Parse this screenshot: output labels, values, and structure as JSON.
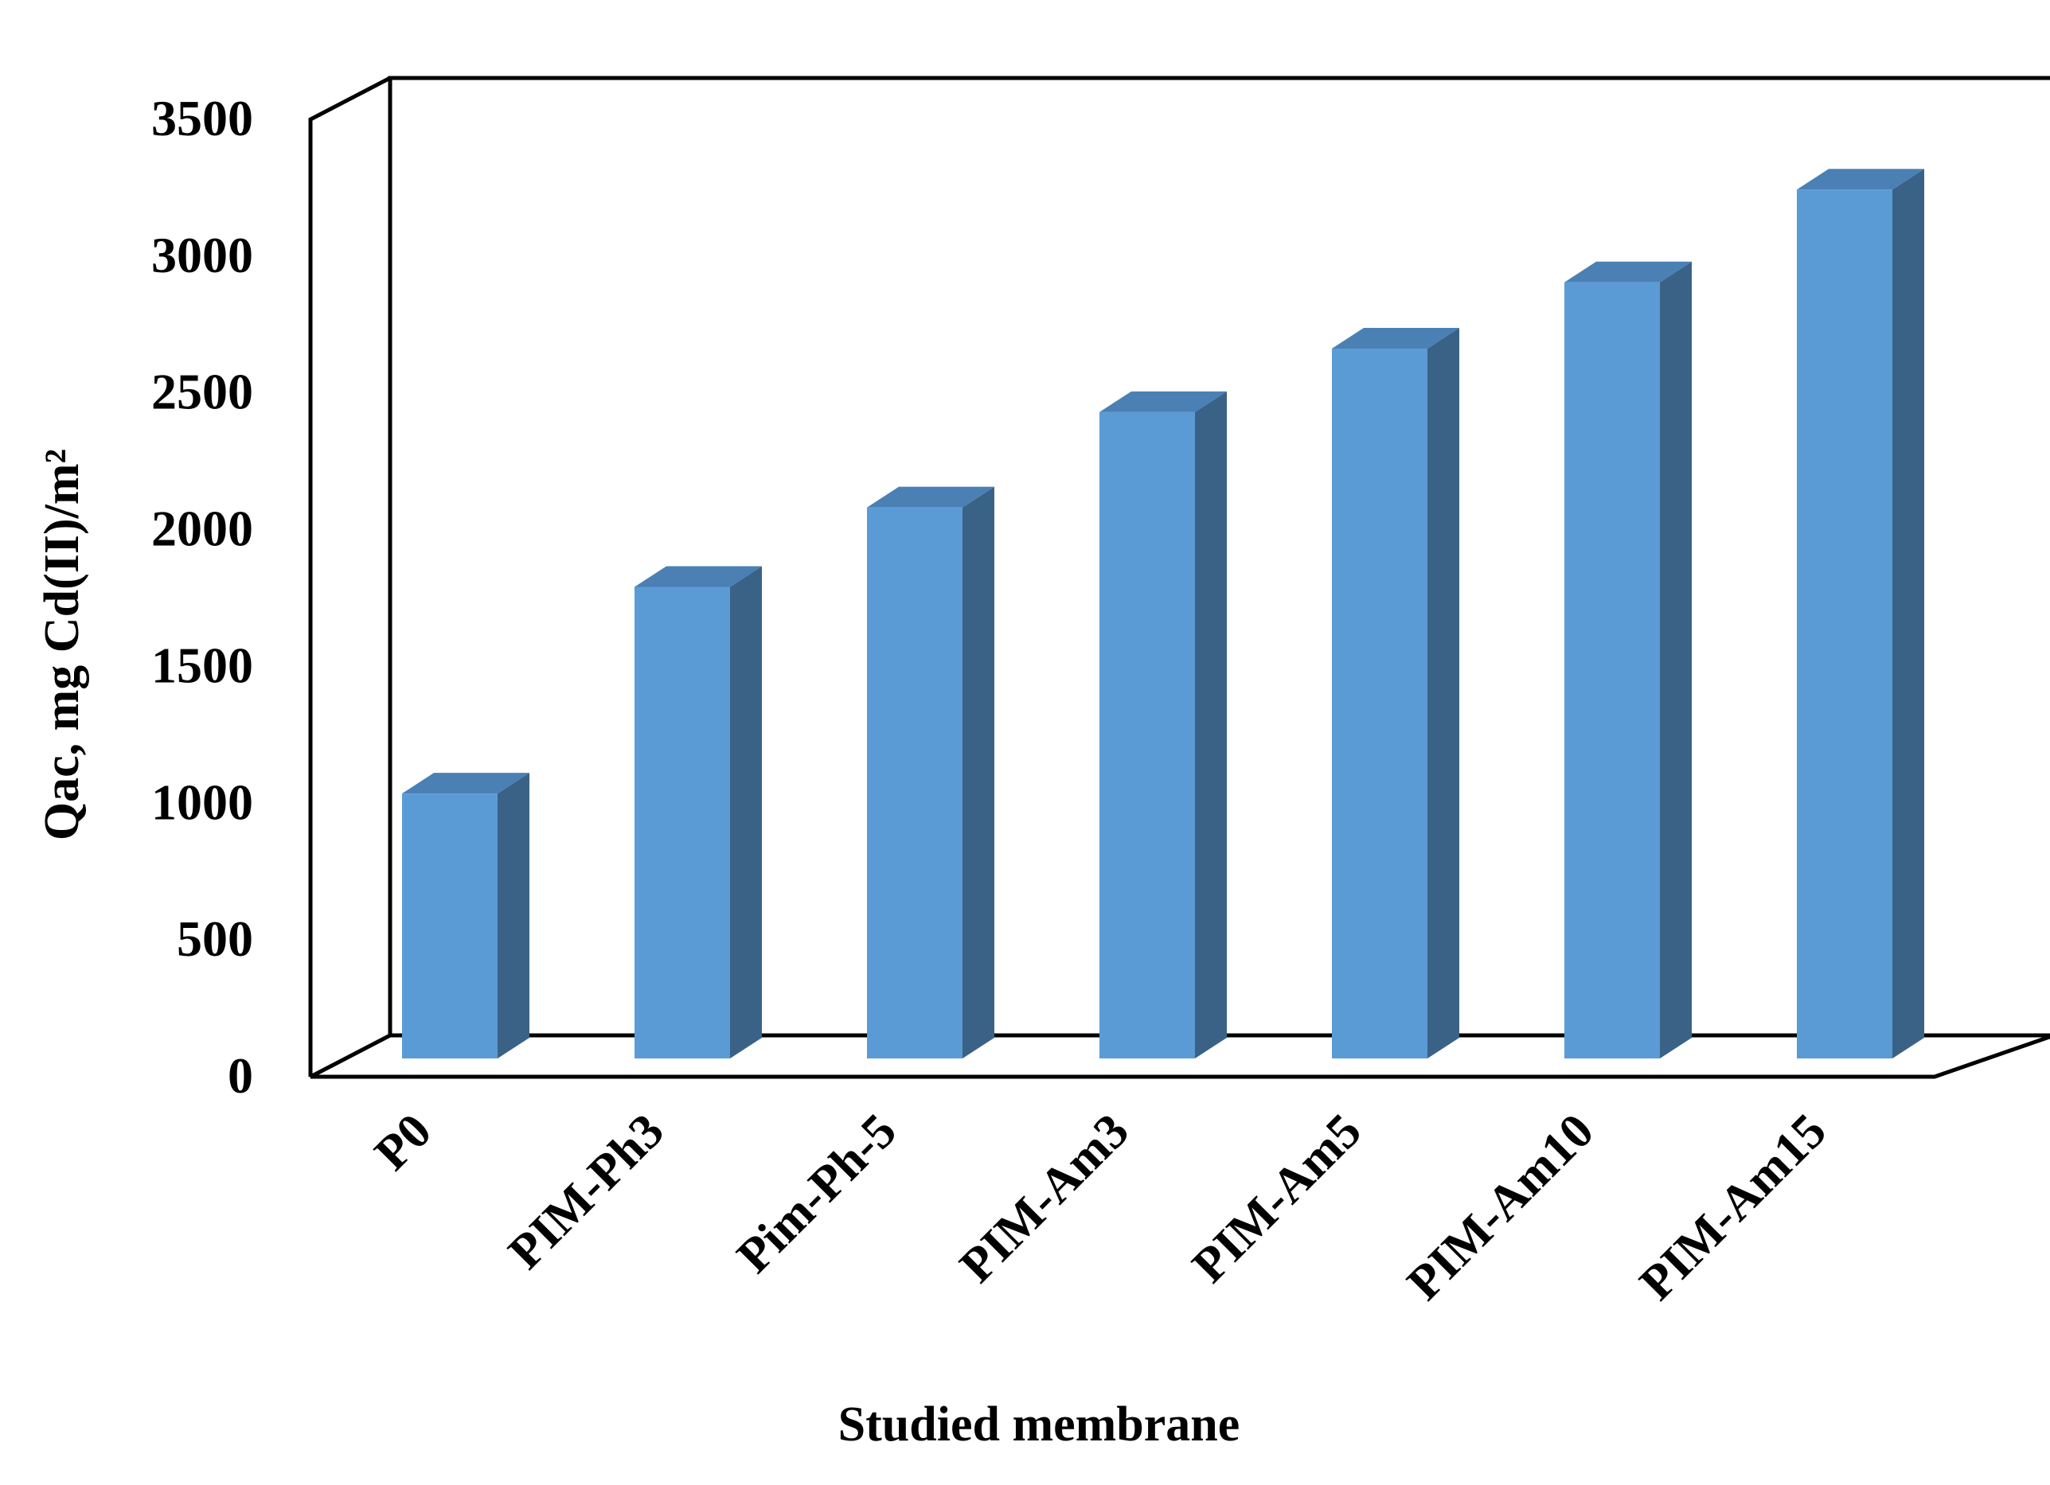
{
  "chart_data": {
    "type": "bar",
    "style": "3d-column",
    "categories": [
      "P0",
      "PIM-Ph3",
      "Pim-Ph-5",
      "PIM-Am3",
      "PIM-Am5",
      "PIM-Am10",
      "PIM-Am15"
    ],
    "series": [
      {
        "name": "",
        "values": [
          1000,
          1780,
          2080,
          2440,
          2680,
          2930,
          3280
        ]
      }
    ],
    "title": "",
    "xlabel": "Studied membrane",
    "ylabel": "Qac, mg Cd(II)/m²",
    "ylim": [
      0,
      3500
    ],
    "yticks": [
      0,
      500,
      1000,
      1500,
      2000,
      2500,
      3000,
      3500
    ],
    "grid": false,
    "legend": "none",
    "colors": {
      "bar_front": "#5B9BD5",
      "bar_side": "#3A6287",
      "bar_top": "#4A80B4",
      "axis": "#000000"
    }
  }
}
